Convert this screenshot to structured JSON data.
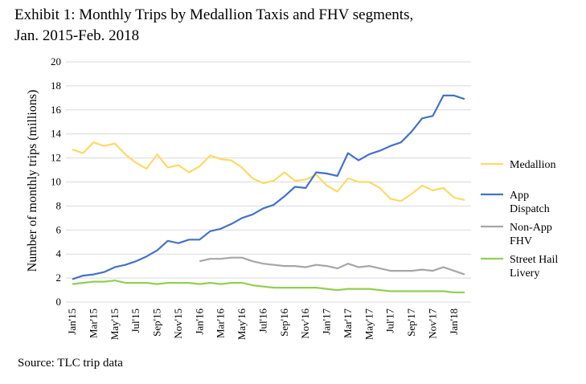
{
  "title_line1": "Exhibit  1: Monthly Trips by Medallion  Taxis and FHV segments,",
  "title_line2": "Jan. 2015-Feb. 2018",
  "source": "Source: TLC trip data",
  "chart_data": {
    "type": "line",
    "title": "Exhibit  1: Monthly Trips by Medallion  Taxis and FHV segments, Jan. 2015-Feb. 2018",
    "xlabel": "",
    "ylabel": "Number of monthly trips (millions)",
    "ylim": [
      0,
      20
    ],
    "yticks": [
      0,
      2,
      4,
      6,
      8,
      10,
      12,
      14,
      16,
      18,
      20
    ],
    "grid": true,
    "legend_position": "right",
    "x": [
      "Jan'15",
      "Feb'15",
      "Mar'15",
      "Apr'15",
      "May'15",
      "Jun'15",
      "Jul'15",
      "Aug'15",
      "Sep'15",
      "Oct'15",
      "Nov'15",
      "Dec'15",
      "Jan'16",
      "Feb'16",
      "Mar'16",
      "Apr'16",
      "May'16",
      "Jun'16",
      "Jul'16",
      "Aug'16",
      "Sep'16",
      "Oct'16",
      "Nov'16",
      "Dec'16",
      "Jan'17",
      "Feb'17",
      "Mar'17",
      "Apr'17",
      "May'17",
      "Jun'17",
      "Jul'17",
      "Aug'17",
      "Sep'17",
      "Oct'17",
      "Nov'17",
      "Dec'17",
      "Jan'18",
      "Feb'18"
    ],
    "xtick_labels": [
      "Jan'15",
      "Mar'15",
      "May'15",
      "Jul'15",
      "Sep'15",
      "Nov'15",
      "Jan'16",
      "Mar'16",
      "May'16",
      "Jul'16",
      "Sep'16",
      "Nov'16",
      "Jan'17",
      "Mar'17",
      "May'17",
      "Jul'17",
      "Sep'17",
      "Nov'17",
      "Jan'18"
    ],
    "series": [
      {
        "name": "Medallion",
        "color": "#FFD966",
        "values": [
          12.7,
          12.4,
          13.3,
          13.0,
          13.2,
          12.3,
          11.6,
          11.1,
          12.3,
          11.2,
          11.4,
          10.8,
          11.3,
          12.2,
          11.9,
          11.8,
          11.2,
          10.3,
          9.9,
          10.1,
          10.8,
          10.1,
          10.2,
          10.6,
          9.7,
          9.2,
          10.3,
          10.0,
          10.0,
          9.5,
          8.6,
          8.4,
          9.0,
          9.7,
          9.3,
          9.5,
          8.7,
          8.5
        ]
      },
      {
        "name": "App Dispatch",
        "color": "#4472C4",
        "values": [
          1.9,
          2.2,
          2.3,
          2.5,
          2.9,
          3.1,
          3.4,
          3.8,
          4.3,
          5.1,
          4.9,
          5.2,
          5.2,
          5.9,
          6.1,
          6.5,
          7.0,
          7.3,
          7.8,
          8.1,
          8.8,
          9.6,
          9.5,
          10.8,
          10.7,
          10.5,
          12.4,
          11.8,
          12.3,
          12.6,
          13.0,
          13.3,
          14.2,
          15.3,
          15.5,
          17.2,
          17.2,
          16.9
        ]
      },
      {
        "name": "Non-App FHV",
        "color": "#A6A6A6",
        "values": [
          null,
          null,
          null,
          null,
          null,
          null,
          null,
          null,
          null,
          null,
          null,
          null,
          3.4,
          3.6,
          3.6,
          3.7,
          3.7,
          3.4,
          3.2,
          3.1,
          3.0,
          3.0,
          2.9,
          3.1,
          3.0,
          2.8,
          3.2,
          2.9,
          3.0,
          2.8,
          2.6,
          2.6,
          2.6,
          2.7,
          2.6,
          2.9,
          2.6,
          2.3
        ]
      },
      {
        "name": "Street Hail Livery",
        "color": "#92D050",
        "values": [
          1.5,
          1.6,
          1.7,
          1.7,
          1.8,
          1.6,
          1.6,
          1.6,
          1.5,
          1.6,
          1.6,
          1.6,
          1.5,
          1.6,
          1.5,
          1.6,
          1.6,
          1.4,
          1.3,
          1.2,
          1.2,
          1.2,
          1.2,
          1.2,
          1.1,
          1.0,
          1.1,
          1.1,
          1.1,
          1.0,
          0.9,
          0.9,
          0.9,
          0.9,
          0.9,
          0.9,
          0.8,
          0.8
        ]
      }
    ],
    "legend": [
      {
        "series": "Medallion",
        "lines": [
          "Medallion"
        ]
      },
      {
        "series": "App Dispatch",
        "lines": [
          "App",
          "Dispatch"
        ]
      },
      {
        "series": "Non-App FHV",
        "lines": [
          "Non-App",
          "FHV"
        ]
      },
      {
        "series": "Street Hail Livery",
        "lines": [
          "Street Hail",
          "Livery"
        ]
      }
    ]
  }
}
